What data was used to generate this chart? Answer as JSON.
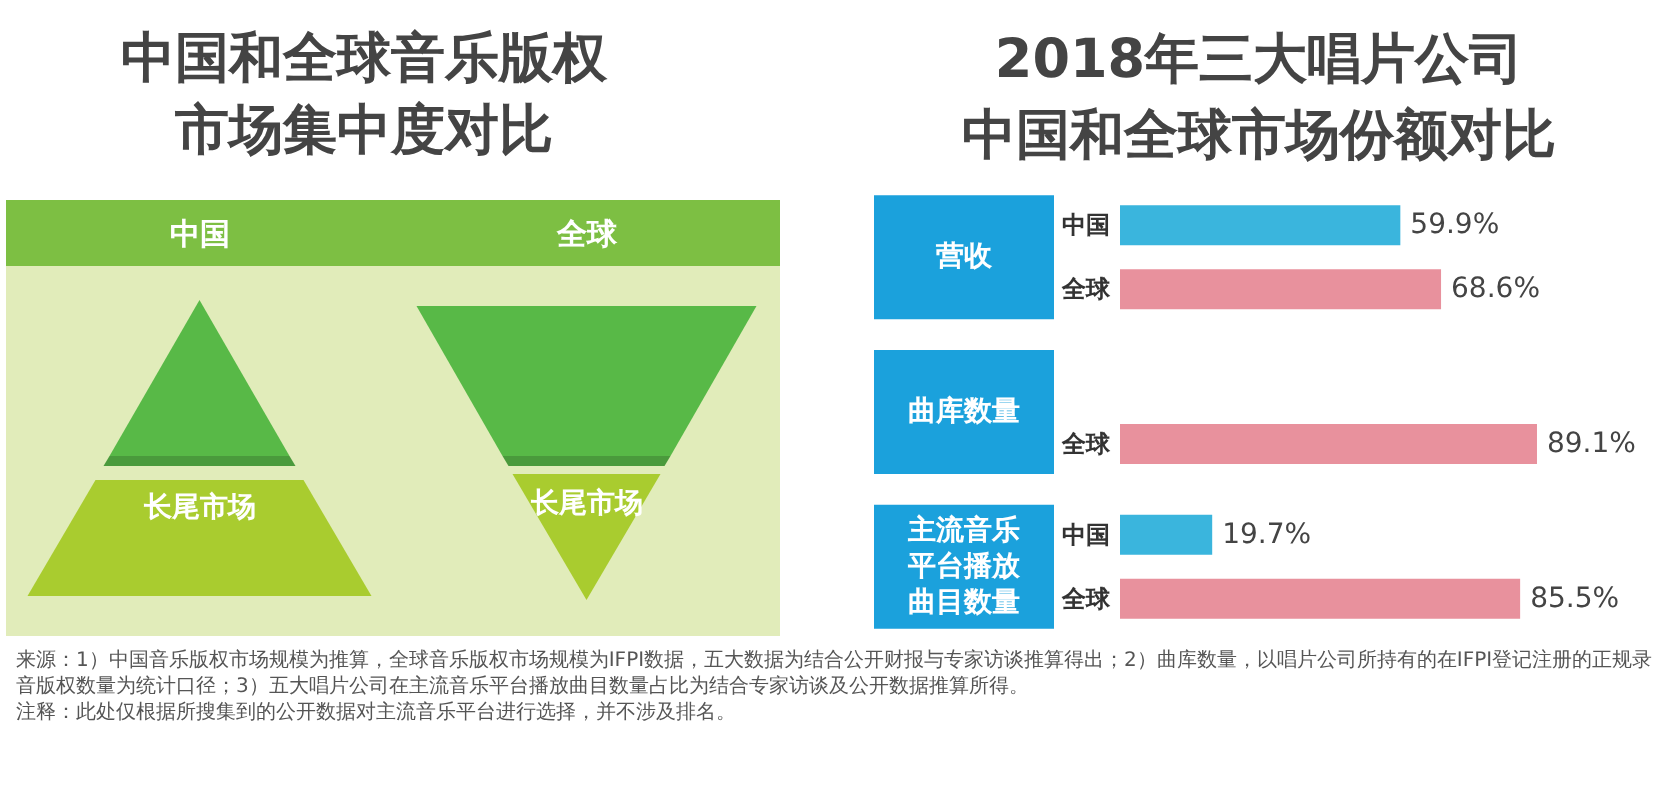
{
  "chart_data": [
    {
      "type": "other",
      "title": "中国和全球音乐版权市场集中度对比",
      "categories": [
        "中国",
        "全球"
      ],
      "annotations": [
        "长尾市场",
        "长尾市场"
      ]
    },
    {
      "type": "bar",
      "orientation": "horizontal",
      "title": "2018年三大唱片公司中国和全球市场份额对比",
      "categories": [
        "营收",
        "曲库数量",
        "主流音乐平台播放曲目数量"
      ],
      "series": [
        {
          "name": "中国",
          "color": "#3ab5dd",
          "values": [
            59.9,
            null,
            19.7
          ],
          "value_labels": [
            "59.9%",
            null,
            "19.7%"
          ]
        },
        {
          "name": "全球",
          "color": "#e8919d",
          "values": [
            68.6,
            89.1,
            85.5
          ],
          "value_labels": [
            "68.6%",
            "89.1%",
            "85.5%"
          ]
        }
      ],
      "tick_labels": "y",
      "annotations": [
        "来源：1）中国音乐版权市场规模为推算，全球音乐版权市场规模为IFPI数据，五大数据为结合公开财报与专家访谈推算得出；2）曲库数量，以唱片公司所持有的在IFPI登记注册的正规录音版权数量为统计口径；3）五大唱片公司在主流音乐平台播放曲目数量占比为结合专家访谈及公开数据推算所得。",
        "注释：此处仅根据所搜集到的公开数据对主流音乐平台进行选择，并不涉及排名。"
      ]
    }
  ]
}
